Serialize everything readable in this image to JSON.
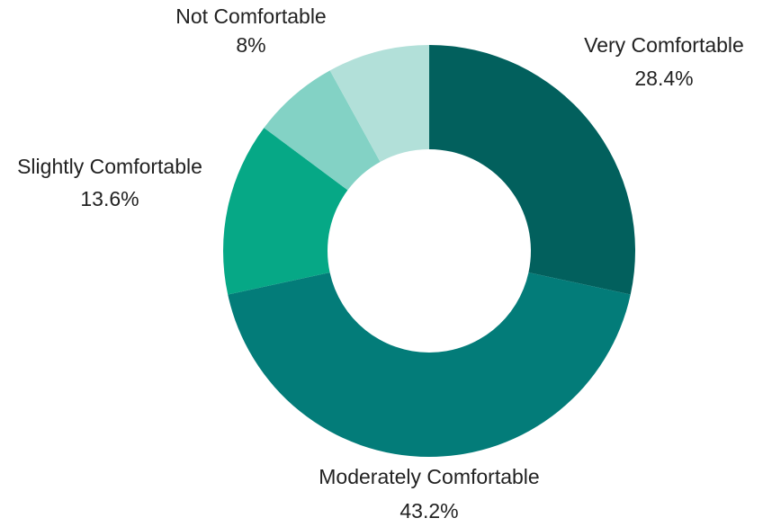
{
  "chart_data": {
    "type": "pie",
    "donut": true,
    "start_angle_deg": 0,
    "direction": "clockwise",
    "slices": [
      {
        "label": "Very Comfortable",
        "value": 28.4,
        "value_label": "28.4%",
        "color": "#02605D"
      },
      {
        "label": "Moderately Comfortable",
        "value": 43.2,
        "value_label": "43.2%",
        "color": "#037C79"
      },
      {
        "label": "Slightly Comfortable",
        "value": 13.6,
        "value_label": "13.6%",
        "color": "#06A886"
      },
      {
        "label": "",
        "value": 6.8,
        "value_label": "",
        "color": "#83D2C5"
      },
      {
        "label": "Not Comfortable",
        "value": 8,
        "value_label": "8%",
        "color": "#B2E0D9"
      }
    ]
  }
}
